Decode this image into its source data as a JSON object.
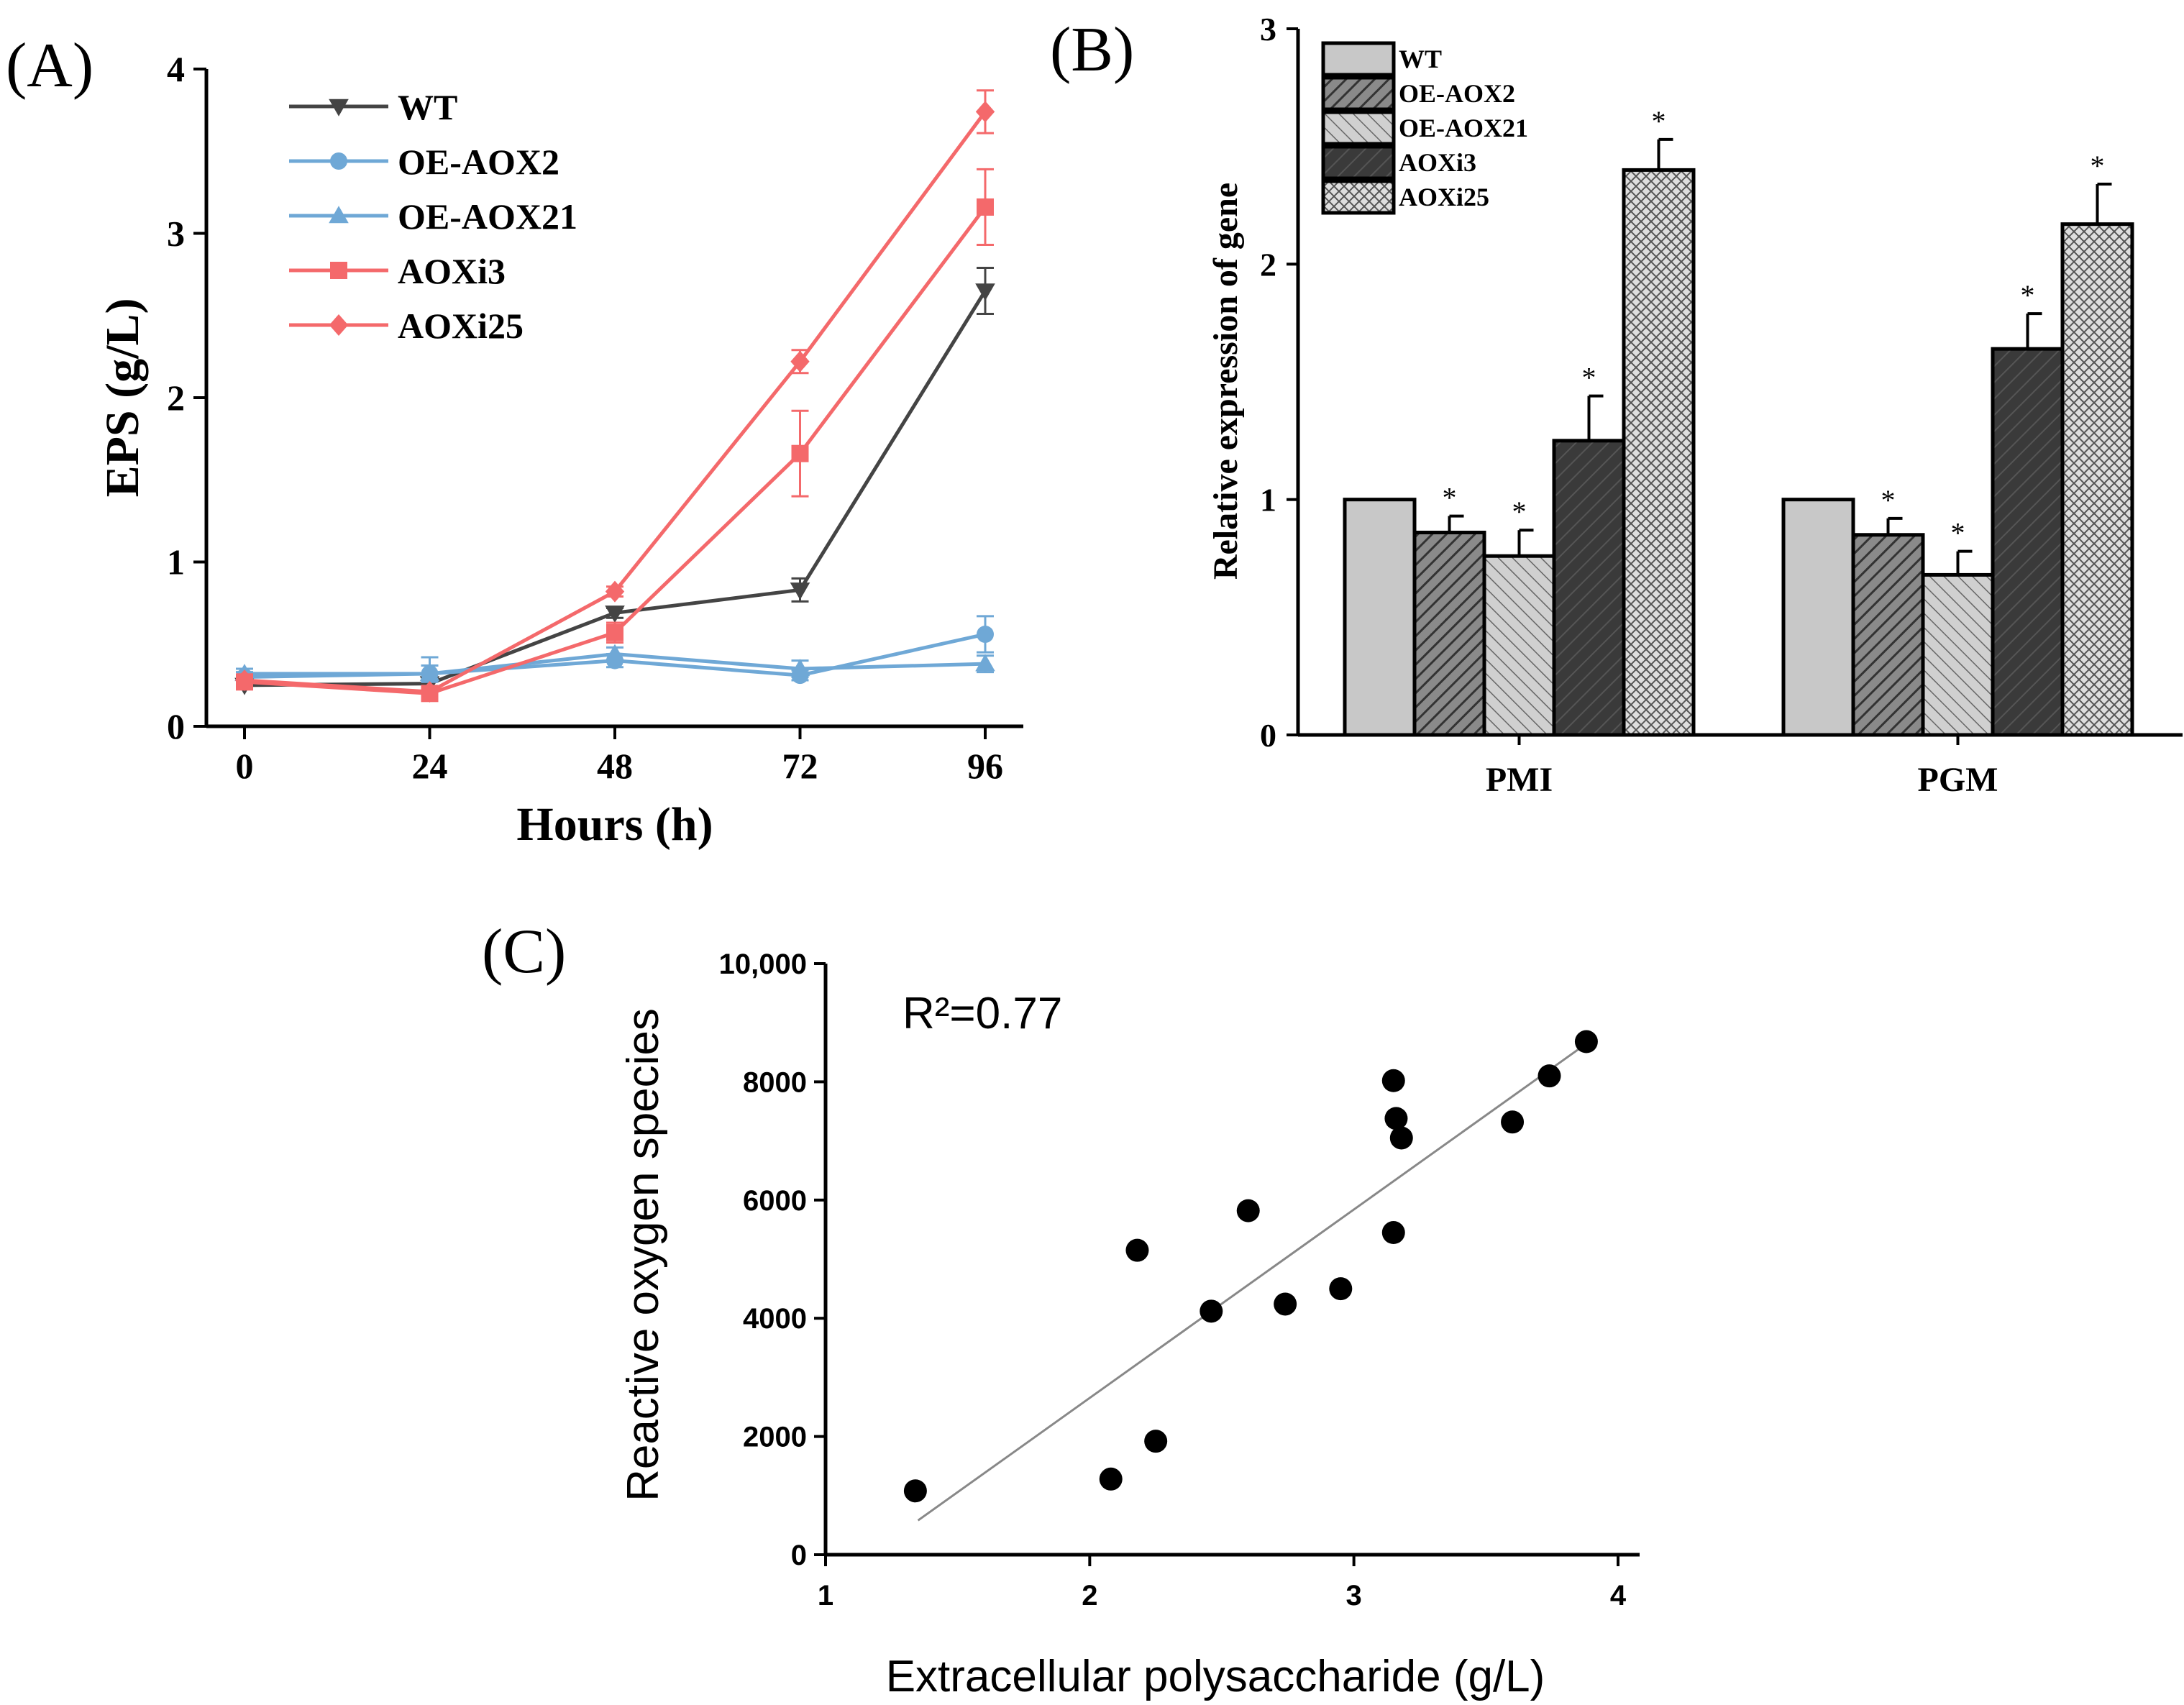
{
  "chart_data": [
    {
      "panel": "(A)",
      "type": "line",
      "xlabel": "Hours (h)",
      "ylabel": "EPS (g/L)",
      "x": [
        0,
        24,
        48,
        72,
        96
      ],
      "xticks": [
        "0",
        "24",
        "48",
        "72",
        "96"
      ],
      "yticks": [
        "0",
        "1",
        "2",
        "3",
        "4"
      ],
      "ylim": [
        0,
        4
      ],
      "legend_position": "top-left",
      "series": [
        {
          "name": "WT",
          "color": "#444444",
          "marker": "triangle-down",
          "values": [
            0.25,
            0.26,
            0.69,
            0.83,
            2.65
          ],
          "errors": [
            0.02,
            0.03,
            0.03,
            0.07,
            0.14
          ]
        },
        {
          "name": "OE-AOX2",
          "color": "#6fa8d6",
          "marker": "circle",
          "values": [
            0.3,
            0.32,
            0.4,
            0.31,
            0.56
          ],
          "errors": [
            0.03,
            0.1,
            0.04,
            0.03,
            0.11
          ]
        },
        {
          "name": "OE-AOX21",
          "color": "#6fa8d6",
          "marker": "triangle-up",
          "values": [
            0.32,
            0.32,
            0.44,
            0.35,
            0.38
          ],
          "errors": [
            0.03,
            0.05,
            0.04,
            0.05,
            0.05
          ]
        },
        {
          "name": "AOXi3",
          "color": "#f4696b",
          "marker": "square",
          "values": [
            0.27,
            0.2,
            0.57,
            1.66,
            3.16
          ],
          "errors": [
            0.03,
            0.02,
            0.06,
            0.26,
            0.23
          ]
        },
        {
          "name": "AOXi25",
          "color": "#f4696b",
          "marker": "diamond",
          "values": [
            0.28,
            0.21,
            0.82,
            2.22,
            3.74
          ],
          "errors": [
            0.03,
            0.02,
            0.03,
            0.07,
            0.13
          ]
        }
      ]
    },
    {
      "panel": "(B)",
      "type": "bar",
      "ylabel": "Relative expression of gene",
      "categories": [
        "PMI",
        "PGM"
      ],
      "yticks": [
        "0",
        "1",
        "2",
        "3"
      ],
      "ylim": [
        0,
        3
      ],
      "legend_position": "top-left",
      "significance_marker": "*",
      "series": [
        {
          "name": "WT",
          "fill": "#c8c8c8",
          "pattern": "solid",
          "values": [
            1.0,
            1.0
          ],
          "errors": [
            0,
            0
          ],
          "significant": [
            false,
            false
          ]
        },
        {
          "name": "OE-AOX2",
          "fill": "#777777",
          "pattern": "hatch-dense",
          "values": [
            0.86,
            0.85
          ],
          "errors": [
            0.07,
            0.07
          ],
          "significant": [
            true,
            true
          ]
        },
        {
          "name": "OE-AOX21",
          "fill": "#b8b8b8",
          "pattern": "hatch-light",
          "values": [
            0.76,
            0.68
          ],
          "errors": [
            0.11,
            0.1
          ],
          "significant": [
            true,
            true
          ]
        },
        {
          "name": "AOXi3",
          "fill": "#3a3a3a",
          "pattern": "hatch-dark",
          "values": [
            1.25,
            1.64
          ],
          "errors": [
            0.19,
            0.15
          ],
          "significant": [
            true,
            true
          ]
        },
        {
          "name": "AOXi25",
          "fill": "#d4d4d4",
          "pattern": "crosshatch",
          "values": [
            2.4,
            2.17
          ],
          "errors": [
            0.13,
            0.17
          ],
          "significant": [
            true,
            true
          ]
        }
      ]
    },
    {
      "panel": "(C)",
      "type": "scatter",
      "xlabel": "Extracellular polysaccharide (g/L)",
      "ylabel": "Reactive oxygen species",
      "xlim": [
        1,
        4
      ],
      "ylim": [
        0,
        10000
      ],
      "xticks": [
        "1",
        "2",
        "3",
        "4"
      ],
      "yticks": [
        "0",
        "2000",
        "4000",
        "6000",
        "8000",
        "10,000"
      ],
      "annotation": "R²=0.77",
      "points": [
        {
          "x": 1.34,
          "y": 1080
        },
        {
          "x": 2.08,
          "y": 1280
        },
        {
          "x": 2.25,
          "y": 1920
        },
        {
          "x": 2.18,
          "y": 5150
        },
        {
          "x": 2.46,
          "y": 4120
        },
        {
          "x": 2.6,
          "y": 5820
        },
        {
          "x": 2.74,
          "y": 4240
        },
        {
          "x": 2.95,
          "y": 4500
        },
        {
          "x": 3.15,
          "y": 5450
        },
        {
          "x": 3.15,
          "y": 8020
        },
        {
          "x": 3.16,
          "y": 7380
        },
        {
          "x": 3.18,
          "y": 7050
        },
        {
          "x": 3.6,
          "y": 7320
        },
        {
          "x": 3.74,
          "y": 8100
        },
        {
          "x": 3.88,
          "y": 8680
        }
      ],
      "fit_line": {
        "x": [
          1.35,
          3.85
        ],
        "y": [
          580,
          8550
        ]
      }
    }
  ]
}
